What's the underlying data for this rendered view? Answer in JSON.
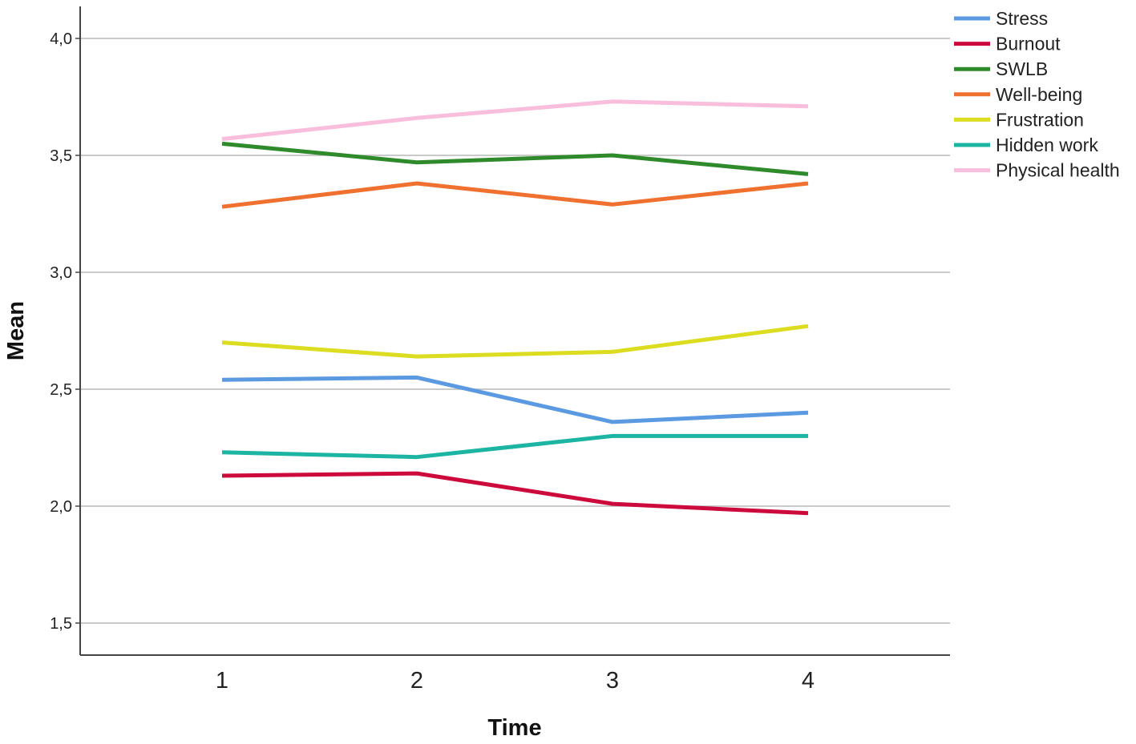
{
  "chart_data": {
    "type": "line",
    "categories": [
      "1",
      "2",
      "3",
      "4"
    ],
    "xlabel": "Time",
    "ylabel": "Mean",
    "ylim": [
      1.37,
      4.15
    ],
    "yticks": [
      1.5,
      2.0,
      2.5,
      3.0,
      3.5,
      4.0
    ],
    "ytick_labels": [
      "1,5",
      "2,0",
      "2,5",
      "3,0",
      "3,5",
      "4,0"
    ],
    "grid": "horizontal",
    "legend_position": "top-right",
    "series": [
      {
        "name": "Stress",
        "color": "#5b9ae0",
        "values": [
          2.54,
          2.55,
          2.36,
          2.4
        ]
      },
      {
        "name": "Burnout",
        "color": "#cc0a3c",
        "values": [
          2.13,
          2.14,
          2.01,
          1.97
        ]
      },
      {
        "name": "SWLB",
        "color": "#2e8a2b",
        "values": [
          3.55,
          3.47,
          3.5,
          3.42
        ]
      },
      {
        "name": "Well-being",
        "color": "#f07030",
        "values": [
          3.28,
          3.38,
          3.29,
          3.38
        ]
      },
      {
        "name": "Frustration",
        "color": "#dcdc20",
        "values": [
          2.7,
          2.64,
          2.66,
          2.77
        ]
      },
      {
        "name": "Hidden work",
        "color": "#1cb4a2",
        "values": [
          2.23,
          2.21,
          2.3,
          2.3
        ]
      },
      {
        "name": "Physical health",
        "color": "#f9bedb",
        "values": [
          3.57,
          3.66,
          3.73,
          3.71
        ]
      }
    ]
  }
}
